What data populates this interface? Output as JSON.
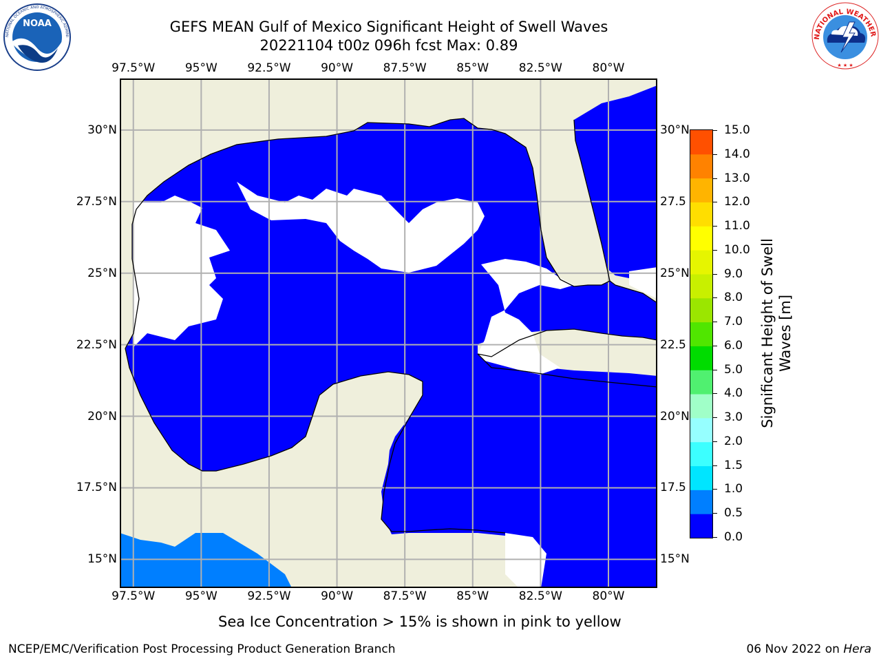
{
  "title": {
    "line1": "GEFS MEAN Gulf of Mexico Significant Height of Swell Waves",
    "line2": "20221104 t00z 096h fcst   Max: 0.89"
  },
  "logos": {
    "left": {
      "name": "noaa-logo",
      "text": "NOAA",
      "ring_text": "NATIONAL OCEANIC AND ATMOSPHERIC ADMINISTRATION · U.S. DEPARTMENT OF COMMERCE"
    },
    "right": {
      "name": "nws-logo",
      "ring_text": "NATIONAL WEATHER SERVICE"
    }
  },
  "map": {
    "lon_labels": [
      "97.5°W",
      "95°W",
      "92.5°W",
      "90°W",
      "87.5°W",
      "85°W",
      "82.5°W",
      "80°W"
    ],
    "lon_values": [
      -97.5,
      -95,
      -92.5,
      -90,
      -87.5,
      -85,
      -82.5,
      -80
    ],
    "lat_labels": [
      "30°N",
      "27.5°N",
      "25°N",
      "22.5°N",
      "20°N",
      "17.5°N",
      "15°N"
    ],
    "lat_values": [
      30,
      27.5,
      25,
      22.5,
      20,
      17.5,
      15
    ],
    "extent": {
      "lon_min": -98,
      "lon_max": -78.2,
      "lat_min": 14,
      "lat_max": 31.8
    },
    "right_lat_labels": [
      "30°N",
      "27.5",
      "25°N",
      "22.5",
      "20°N",
      "17.5",
      "15°N"
    ],
    "colors": {
      "land": "#efefdc",
      "gridline": "#b0b0b0",
      "coast": "#000000",
      "no_data": "#ffffff",
      "swell_0_0_5": "#0000ff",
      "swell_0_5_1_0": "#007fff"
    }
  },
  "colorbar": {
    "label_line1": "Significant Height of Swell",
    "label_line2": "Waves [m]",
    "ticks": [
      "0.0",
      "0.5",
      "1.0",
      "1.5",
      "2.0",
      "3.0",
      "4.0",
      "5.0",
      "6.0",
      "7.0",
      "8.0",
      "9.0",
      "10.0",
      "11.0",
      "12.0",
      "13.0",
      "14.0",
      "15.0"
    ],
    "colors": [
      "#0000ff",
      "#007fff",
      "#00e5ff",
      "#3cffff",
      "#96ffff",
      "#a0ffc8",
      "#50f070",
      "#00dc00",
      "#50e600",
      "#9be600",
      "#c8f000",
      "#e6f500",
      "#ffff00",
      "#ffde00",
      "#ffb400",
      "#ff8200",
      "#ff5000",
      "#ff1e00",
      "#ff0000"
    ]
  },
  "ice_note": "Sea Ice Concentration > 15% is shown in pink to yellow",
  "footer": {
    "left": "NCEP/EMC/Verification Post Processing Product Generation Branch",
    "date": "06 Nov 2022 on ",
    "host": "Hera"
  }
}
